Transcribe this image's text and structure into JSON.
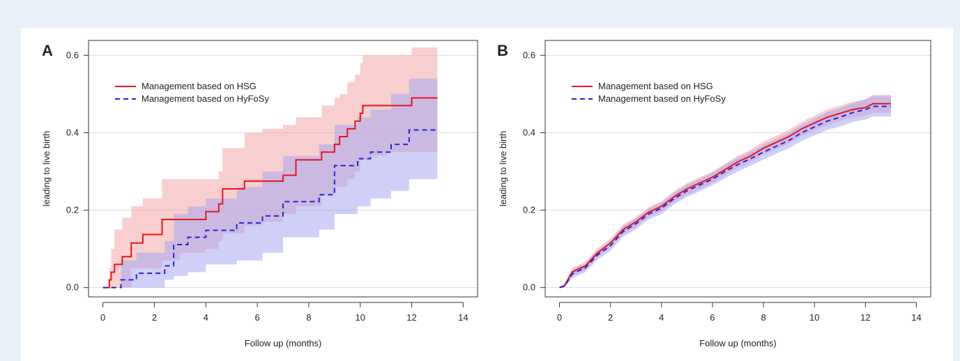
{
  "colors": {
    "hsg_line": "#e8141b",
    "hsg_band": "#f4a6a6",
    "hyfosy_line": "#2323d8",
    "hyfosy_band": "#a7a7f3",
    "grid": "#d9d9d9",
    "page_bg": "#e9f0f8"
  },
  "chart_data": [
    {
      "panel_label": "A",
      "type": "line",
      "step": true,
      "xlabel": "Follow up (months)",
      "ylabel": "leading to live birth",
      "xlim": [
        0,
        14
      ],
      "ylim": [
        0,
        0.6
      ],
      "xticks": [
        0,
        2,
        4,
        6,
        8,
        10,
        12,
        14
      ],
      "yticks": [
        0.0,
        0.2,
        0.4,
        0.6
      ],
      "ytick_labels": [
        "0.0",
        "0.2",
        "0.4",
        "0.6"
      ],
      "grid": "horizontal",
      "legend_position": "top-left",
      "series": [
        {
          "name": "Management based on HSG",
          "style": "solid",
          "color": "#e8141b",
          "x": [
            0,
            0.25,
            0.32,
            0.45,
            0.75,
            1.1,
            1.55,
            2.3,
            3.0,
            4.0,
            4.5,
            4.65,
            5.5,
            6.2,
            7.0,
            7.5,
            8.5,
            9.0,
            9.2,
            9.5,
            9.8,
            10.0,
            10.1,
            10.4,
            11.0,
            12.0,
            13.0
          ],
          "y": [
            0,
            0.02,
            0.04,
            0.06,
            0.08,
            0.115,
            0.137,
            0.176,
            0.176,
            0.196,
            0.216,
            0.255,
            0.275,
            0.275,
            0.29,
            0.33,
            0.35,
            0.37,
            0.39,
            0.41,
            0.43,
            0.45,
            0.47,
            0.47,
            0.47,
            0.49,
            0.49
          ],
          "ci_lower": [
            0,
            0,
            0,
            0,
            0,
            0.05,
            0.05,
            0.07,
            0.09,
            0.1,
            0.12,
            0.14,
            0.16,
            0.17,
            0.19,
            0.21,
            0.24,
            0.26,
            0.26,
            0.28,
            0.3,
            0.33,
            0.33,
            0.34,
            0.35,
            0.35,
            0.35
          ],
          "ci_upper": [
            0,
            0.05,
            0.1,
            0.15,
            0.18,
            0.21,
            0.23,
            0.28,
            0.28,
            0.28,
            0.3,
            0.36,
            0.4,
            0.41,
            0.42,
            0.44,
            0.47,
            0.49,
            0.5,
            0.53,
            0.55,
            0.58,
            0.6,
            0.6,
            0.6,
            0.62,
            0.62
          ]
        },
        {
          "name": "Management based on HyFoSy",
          "style": "dashed",
          "color": "#2323d8",
          "x": [
            0,
            0.7,
            1.3,
            2.4,
            2.75,
            3.3,
            4.0,
            5.2,
            6.2,
            7.0,
            8.4,
            9.0,
            9.9,
            10.4,
            11.2,
            11.9,
            13.0
          ],
          "y": [
            0,
            0.02,
            0.037,
            0.056,
            0.111,
            0.13,
            0.148,
            0.167,
            0.185,
            0.222,
            0.24,
            0.315,
            0.333,
            0.35,
            0.37,
            0.407,
            0.407
          ],
          "ci_lower": [
            0,
            0,
            0,
            0.02,
            0.03,
            0.04,
            0.06,
            0.07,
            0.09,
            0.13,
            0.15,
            0.19,
            0.21,
            0.23,
            0.25,
            0.28,
            0.28
          ],
          "ci_upper": [
            0,
            0.07,
            0.09,
            0.12,
            0.19,
            0.21,
            0.23,
            0.26,
            0.3,
            0.34,
            0.37,
            0.42,
            0.44,
            0.46,
            0.5,
            0.54,
            0.54
          ]
        }
      ]
    },
    {
      "panel_label": "B",
      "type": "line",
      "step": false,
      "xlabel": "Follow up (months)",
      "ylabel": "leading to live birth",
      "xlim": [
        0,
        14
      ],
      "ylim": [
        0,
        0.6
      ],
      "xticks": [
        0,
        2,
        4,
        6,
        8,
        10,
        12,
        14
      ],
      "yticks": [
        0.0,
        0.2,
        0.4,
        0.6
      ],
      "ytick_labels": [
        "0.0",
        "0.2",
        "0.4",
        "0.6"
      ],
      "grid": "horizontal",
      "legend_position": "top-left",
      "series": [
        {
          "name": "Management based on HSG",
          "style": "solid",
          "color": "#e8141b",
          "x": [
            0,
            0.2,
            0.5,
            0.8,
            1.0,
            1.5,
            2.0,
            2.5,
            3.0,
            3.5,
            4.0,
            4.5,
            5.0,
            5.5,
            6.0,
            6.5,
            7.0,
            7.5,
            8.0,
            8.5,
            9.0,
            9.5,
            10.0,
            10.5,
            11.0,
            11.5,
            12.0,
            12.3,
            13.0
          ],
          "y": [
            0,
            0.005,
            0.04,
            0.05,
            0.055,
            0.09,
            0.115,
            0.15,
            0.17,
            0.195,
            0.21,
            0.235,
            0.255,
            0.27,
            0.285,
            0.305,
            0.325,
            0.34,
            0.36,
            0.375,
            0.39,
            0.41,
            0.425,
            0.44,
            0.45,
            0.46,
            0.465,
            0.475,
            0.475
          ],
          "ci_lower": [
            0,
            0,
            0.03,
            0.04,
            0.045,
            0.078,
            0.103,
            0.137,
            0.157,
            0.182,
            0.197,
            0.221,
            0.24,
            0.255,
            0.27,
            0.29,
            0.309,
            0.324,
            0.343,
            0.358,
            0.372,
            0.392,
            0.406,
            0.42,
            0.43,
            0.44,
            0.444,
            0.452,
            0.452
          ],
          "ci_upper": [
            0,
            0.012,
            0.05,
            0.06,
            0.065,
            0.102,
            0.127,
            0.163,
            0.183,
            0.208,
            0.223,
            0.249,
            0.27,
            0.285,
            0.3,
            0.32,
            0.341,
            0.356,
            0.377,
            0.392,
            0.408,
            0.428,
            0.444,
            0.46,
            0.47,
            0.48,
            0.486,
            0.498,
            0.498
          ]
        },
        {
          "name": "Management based on HyFoSy",
          "style": "dashed",
          "color": "#2323d8",
          "x": [
            0,
            0.2,
            0.5,
            0.8,
            1.0,
            1.5,
            2.0,
            2.5,
            3.0,
            3.5,
            4.0,
            4.5,
            5.0,
            5.5,
            6.0,
            6.5,
            7.0,
            7.5,
            8.0,
            8.5,
            9.0,
            9.5,
            10.0,
            10.5,
            11.0,
            11.5,
            12.0,
            12.3,
            13.0
          ],
          "y": [
            0,
            0.004,
            0.035,
            0.045,
            0.05,
            0.085,
            0.108,
            0.145,
            0.165,
            0.19,
            0.205,
            0.23,
            0.25,
            0.265,
            0.28,
            0.3,
            0.318,
            0.333,
            0.35,
            0.365,
            0.38,
            0.4,
            0.415,
            0.43,
            0.44,
            0.452,
            0.46,
            0.468,
            0.468
          ],
          "ci_lower": [
            0,
            0,
            0.024,
            0.034,
            0.039,
            0.073,
            0.095,
            0.131,
            0.151,
            0.176,
            0.19,
            0.215,
            0.234,
            0.249,
            0.264,
            0.283,
            0.3,
            0.315,
            0.331,
            0.346,
            0.36,
            0.379,
            0.393,
            0.407,
            0.416,
            0.428,
            0.434,
            0.442,
            0.442
          ],
          "ci_upper": [
            0,
            0.01,
            0.046,
            0.056,
            0.061,
            0.097,
            0.121,
            0.159,
            0.179,
            0.204,
            0.22,
            0.245,
            0.266,
            0.281,
            0.296,
            0.317,
            0.336,
            0.351,
            0.369,
            0.384,
            0.4,
            0.421,
            0.437,
            0.453,
            0.464,
            0.476,
            0.486,
            0.494,
            0.494
          ]
        }
      ]
    }
  ]
}
